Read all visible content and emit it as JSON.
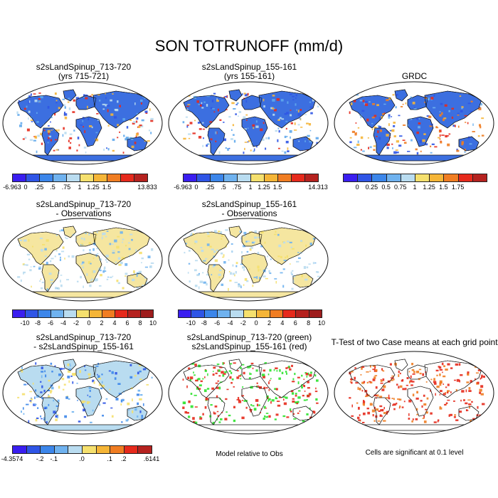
{
  "figure_title": "SON TOTRUNOFF (mm/d)",
  "panels": [
    {
      "id": "p1",
      "title1": "s2sLandSpinup_713-720",
      "title2": "(yrs 715-721)",
      "kind": "abs"
    },
    {
      "id": "p2",
      "title1": "s2sLandSpinup_155-161",
      "title2": "(yrs 155-161)",
      "kind": "abs"
    },
    {
      "id": "p3",
      "title1": "GRDC",
      "title2": "",
      "kind": "abs"
    },
    {
      "id": "p4",
      "title1": "s2sLandSpinup_713-720",
      "title2": "- Observations",
      "kind": "diff"
    },
    {
      "id": "p5",
      "title1": "s2sLandSpinup_155-161",
      "title2": "- Observations",
      "kind": "diff"
    },
    {
      "id": "p6",
      "title1": "s2sLandSpinup_713-720",
      "title2": "- s2sLandSpinup_155-161",
      "kind": "modeldiff"
    },
    {
      "id": "p7",
      "title1": "s2sLandSpinup_713-720 (green)",
      "title2": "s2sLandSpinup_155-161 (red)",
      "kind": "rel"
    },
    {
      "id": "p8",
      "title1": "T-Test of two Case means at each grid point",
      "title2": "",
      "kind": "ttest"
    }
  ],
  "captions": {
    "model_relative": "Model relative to Obs",
    "significance": "Cells are significant at 0.1 level"
  },
  "colorbars": {
    "cb1": {
      "colors": [
        "#3a1ef0",
        "#2f55e6",
        "#3c86ea",
        "#6fb2ef",
        "#b9dcf0",
        "#f5e06e",
        "#f5b537",
        "#f07d22",
        "#e62a1c",
        "#b5221f"
      ],
      "labels": [
        "-6.963",
        "0",
        ".25",
        ".5",
        ".75",
        "1",
        "1.25",
        "1.5",
        "13.833"
      ],
      "label_edges": [
        0,
        1,
        2,
        3,
        4,
        5,
        6,
        7,
        10
      ]
    },
    "cb2": {
      "colors": [
        "#3a1ef0",
        "#2f55e6",
        "#3c86ea",
        "#6fb2ef",
        "#b9dcf0",
        "#f5e06e",
        "#f5b537",
        "#f07d22",
        "#e62a1c",
        "#b5221f"
      ],
      "labels": [
        "-6.963",
        "0",
        ".25",
        ".5",
        ".75",
        "1",
        "1.25",
        "1.5",
        "14.313"
      ],
      "label_edges": [
        0,
        1,
        2,
        3,
        4,
        5,
        6,
        7,
        10
      ]
    },
    "cb3": {
      "colors": [
        "#3a1ef0",
        "#2f55e6",
        "#3c86ea",
        "#6fb2ef",
        "#b9dcf0",
        "#f5e06e",
        "#f5b537",
        "#f07d22",
        "#e62a1c",
        "#b5221f"
      ],
      "labels": [
        "0",
        "0.25",
        "0.5",
        "0.75",
        "1",
        "1.25",
        "1.5",
        "1.75"
      ],
      "label_edges": [
        1,
        2,
        3,
        4,
        5,
        6,
        7,
        8
      ]
    },
    "cb4": {
      "colors": [
        "#3a1ef0",
        "#2f55e6",
        "#3c86ea",
        "#6fb2ef",
        "#b9dcf0",
        "#f5e06e",
        "#f5b537",
        "#f07d22",
        "#e62a1c",
        "#b5221f",
        "#9e1d1d"
      ],
      "labels": [
        "-10",
        "-8",
        "-6",
        "-4",
        "-2",
        "0",
        "2",
        "4",
        "6",
        "8",
        "10"
      ],
      "label_edges": [
        1,
        2,
        3,
        4,
        5,
        6,
        7,
        8,
        9,
        10,
        11
      ]
    },
    "cb5": {
      "colors": [
        "#3a1ef0",
        "#2f55e6",
        "#3c86ea",
        "#6fb2ef",
        "#b9dcf0",
        "#f5e06e",
        "#f5b537",
        "#f07d22",
        "#e62a1c",
        "#b5221f",
        "#9e1d1d"
      ],
      "labels": [
        "-10",
        "-8",
        "-6",
        "-4",
        "-2",
        "0",
        "2",
        "4",
        "6",
        "8",
        "10"
      ],
      "label_edges": [
        1,
        2,
        3,
        4,
        5,
        6,
        7,
        8,
        9,
        10,
        11
      ]
    },
    "cb6": {
      "colors": [
        "#3a1ef0",
        "#2f55e6",
        "#3c86ea",
        "#6fb2ef",
        "#b9dcf0",
        "#f5e06e",
        "#f5b537",
        "#f07d22",
        "#e62a1c",
        "#b5221f"
      ],
      "labels": [
        "-4.3574",
        "-.2",
        "-.1",
        ".0",
        ".1",
        ".2",
        ".6141"
      ],
      "label_edges": [
        0,
        2,
        3,
        5,
        7,
        8,
        10
      ]
    }
  }
}
